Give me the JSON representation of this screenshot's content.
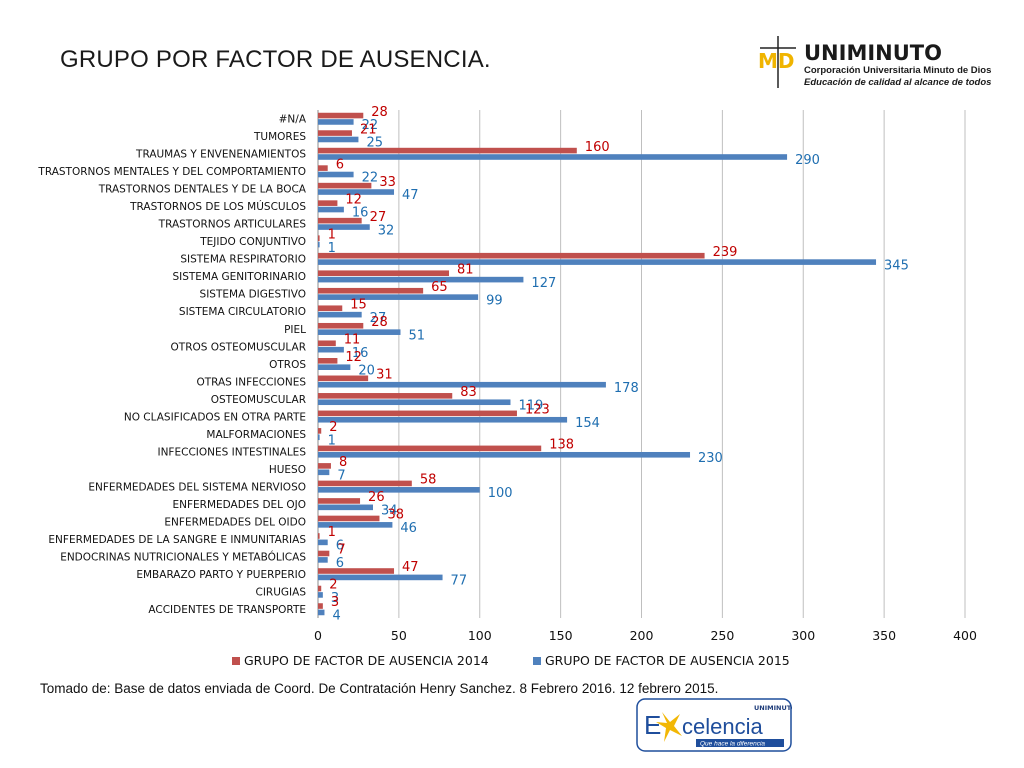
{
  "slide": {
    "title": "GRUPO POR FACTOR DE AUSENCIA.",
    "source": "Tomado de: Base de datos enviada de Coord. De Contratación Henry Sanchez. 8 Febrero 2016. 12 febrero 2015."
  },
  "logo_top": {
    "name": "UNIMINUTO",
    "line1": "Corporación Universitaria Minuto de Dios",
    "line2": "Educación de calidad al alcance de todos",
    "mark": "MD"
  },
  "logo_bottom": {
    "brand": "UNIMINUTO",
    "word_e": "E",
    "word_rest": "celencia",
    "tagline": "Que hace la diferencia"
  },
  "colors": {
    "series_2014": "#c0504d",
    "series_2015": "#4f81bd",
    "label_2014": "#c00000",
    "label_2015": "#1f6eb0",
    "grid": "#bfbfbf"
  },
  "chart_data": {
    "type": "bar",
    "orientation": "horizontal",
    "categories": [
      "#N/A",
      "TUMORES",
      "TRAUMAS Y ENVENENAMIENTOS",
      "TRASTORNOS MENTALES Y DEL COMPORTAMIENTO",
      "TRASTORNOS DENTALES Y DE LA BOCA",
      "TRASTORNOS DE LOS MÚSCULOS",
      "TRASTORNOS ARTICULARES",
      "TEJIDO CONJUNTIVO",
      "SISTEMA RESPIRATORIO",
      "SISTEMA GENITORINARIO",
      "SISTEMA DIGESTIVO",
      "SISTEMA CIRCULATORIO",
      "PIEL",
      "OTROS OSTEOMUSCULAR",
      "OTROS",
      "OTRAS INFECCIONES",
      "OSTEOMUSCULAR",
      "NO CLASIFICADOS EN OTRA PARTE",
      "MALFORMACIONES",
      "INFECCIONES INTESTINALES",
      "HUESO",
      "ENFERMEDADES DEL SISTEMA NERVIOSO",
      "ENFERMEDADES DEL OJO",
      "ENFERMEDADES DEL OIDO",
      "ENFERMEDADES DE LA SANGRE E INMUNITARIAS",
      "ENDOCRINAS NUTRICIONALES Y METABÓLICAS",
      "EMBARAZO PARTO Y PUERPERIO",
      "CIRUGIAS",
      "ACCIDENTES DE TRANSPORTE"
    ],
    "series": [
      {
        "name": "GRUPO DE FACTOR DE AUSENCIA 2014",
        "values": [
          28,
          21,
          160,
          6,
          33,
          12,
          27,
          1,
          239,
          81,
          65,
          15,
          28,
          11,
          12,
          31,
          83,
          123,
          2,
          138,
          8,
          58,
          26,
          38,
          1,
          7,
          47,
          2,
          3
        ]
      },
      {
        "name": "GRUPO DE FACTOR DE AUSENCIA 2015",
        "values": [
          22,
          25,
          290,
          22,
          47,
          16,
          32,
          1,
          345,
          127,
          99,
          27,
          51,
          16,
          20,
          178,
          119,
          154,
          1,
          230,
          7,
          100,
          34,
          46,
          6,
          6,
          77,
          3,
          4
        ]
      }
    ],
    "xlim": [
      0,
      400
    ],
    "xticks": [
      0,
      50,
      100,
      150,
      200,
      250,
      300,
      350,
      400
    ],
    "grid": true,
    "legend": "bottom"
  }
}
